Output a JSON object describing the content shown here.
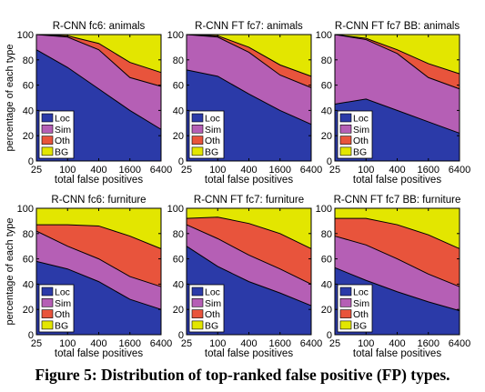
{
  "figure": {
    "caption": "Figure 5: Distribution of top-ranked false positive (FP) types."
  },
  "colors": {
    "Loc": "#2b3aa8",
    "Sim": "#b55fb5",
    "Oth": "#e8543c",
    "BG": "#e3e600"
  },
  "chart_data": [
    {
      "type": "area",
      "title": "R-CNN fc6: animals",
      "xlabel": "total false positives",
      "ylabel": "percentage of each type",
      "x": [
        25,
        100,
        400,
        1600,
        6400
      ],
      "xscale": "log",
      "ylim": [
        0,
        100
      ],
      "yticks": [
        0,
        20,
        40,
        60,
        80,
        100
      ],
      "legend": "bottom-left",
      "series": [
        {
          "name": "Loc",
          "values": [
            88,
            74,
            57,
            40,
            25
          ]
        },
        {
          "name": "Sim",
          "values": [
            100,
            98,
            88,
            66,
            59
          ]
        },
        {
          "name": "Oth",
          "values": [
            100,
            99,
            93,
            78,
            70
          ]
        },
        {
          "name": "BG",
          "values": [
            100,
            100,
            100,
            100,
            100
          ]
        }
      ]
    },
    {
      "type": "area",
      "title": "R-CNN FT fc7: animals",
      "xlabel": "total false positives",
      "ylabel": "",
      "x": [
        25,
        100,
        400,
        1600,
        6400
      ],
      "xscale": "log",
      "ylim": [
        0,
        100
      ],
      "yticks": [
        0,
        20,
        40,
        60,
        80,
        100
      ],
      "legend": "bottom-left",
      "series": [
        {
          "name": "Loc",
          "values": [
            72,
            67,
            53,
            40,
            29
          ]
        },
        {
          "name": "Sim",
          "values": [
            100,
            98,
            86,
            68,
            58
          ]
        },
        {
          "name": "Oth",
          "values": [
            100,
            99,
            90,
            76,
            67
          ]
        },
        {
          "name": "BG",
          "values": [
            100,
            100,
            100,
            100,
            100
          ]
        }
      ]
    },
    {
      "type": "area",
      "title": "R-CNN FT fc7 BB: animals",
      "xlabel": "total false positives",
      "ylabel": "",
      "x": [
        25,
        100,
        400,
        1600,
        6400
      ],
      "xscale": "log",
      "ylim": [
        0,
        100
      ],
      "yticks": [
        0,
        20,
        40,
        60,
        80,
        100
      ],
      "legend": "bottom-left",
      "series": [
        {
          "name": "Loc",
          "values": [
            45,
            49,
            40,
            31,
            22
          ]
        },
        {
          "name": "Sim",
          "values": [
            100,
            96,
            85,
            66,
            57
          ]
        },
        {
          "name": "Oth",
          "values": [
            100,
            97,
            88,
            77,
            69
          ]
        },
        {
          "name": "BG",
          "values": [
            100,
            100,
            100,
            100,
            100
          ]
        }
      ]
    },
    {
      "type": "area",
      "title": "R-CNN fc6: furniture",
      "xlabel": "total false positives",
      "ylabel": "percentage of each type",
      "x": [
        25,
        100,
        400,
        1600,
        6400
      ],
      "xscale": "log",
      "ylim": [
        0,
        100
      ],
      "yticks": [
        0,
        20,
        40,
        60,
        80,
        100
      ],
      "legend": "bottom-left",
      "series": [
        {
          "name": "Loc",
          "values": [
            58,
            52,
            42,
            28,
            20
          ]
        },
        {
          "name": "Sim",
          "values": [
            82,
            70,
            60,
            46,
            38
          ]
        },
        {
          "name": "Oth",
          "values": [
            87,
            87,
            86,
            78,
            68
          ]
        },
        {
          "name": "BG",
          "values": [
            100,
            100,
            100,
            100,
            100
          ]
        }
      ]
    },
    {
      "type": "area",
      "title": "R-CNN FT fc7: furniture",
      "xlabel": "total false positives",
      "ylabel": "",
      "x": [
        25,
        100,
        400,
        1600,
        6400
      ],
      "xscale": "log",
      "ylim": [
        0,
        100
      ],
      "yticks": [
        0,
        20,
        40,
        60,
        80,
        100
      ],
      "legend": "bottom-left",
      "series": [
        {
          "name": "Loc",
          "values": [
            70,
            54,
            42,
            33,
            23
          ]
        },
        {
          "name": "Sim",
          "values": [
            87,
            76,
            63,
            52,
            40
          ]
        },
        {
          "name": "Oth",
          "values": [
            92,
            93,
            88,
            80,
            68
          ]
        },
        {
          "name": "BG",
          "values": [
            100,
            100,
            100,
            100,
            100
          ]
        }
      ]
    },
    {
      "type": "area",
      "title": "R-CNN FT fc7 BB: furniture",
      "xlabel": "total false positives",
      "ylabel": "",
      "x": [
        25,
        100,
        400,
        1600,
        6400
      ],
      "xscale": "log",
      "ylim": [
        0,
        100
      ],
      "yticks": [
        0,
        20,
        40,
        60,
        80,
        100
      ],
      "legend": "bottom-left",
      "series": [
        {
          "name": "Loc",
          "values": [
            53,
            43,
            34,
            26,
            19
          ]
        },
        {
          "name": "Sim",
          "values": [
            78,
            71,
            60,
            48,
            38
          ]
        },
        {
          "name": "Oth",
          "values": [
            92,
            92,
            87,
            79,
            68
          ]
        },
        {
          "name": "BG",
          "values": [
            100,
            100,
            100,
            100,
            100
          ]
        }
      ]
    }
  ]
}
